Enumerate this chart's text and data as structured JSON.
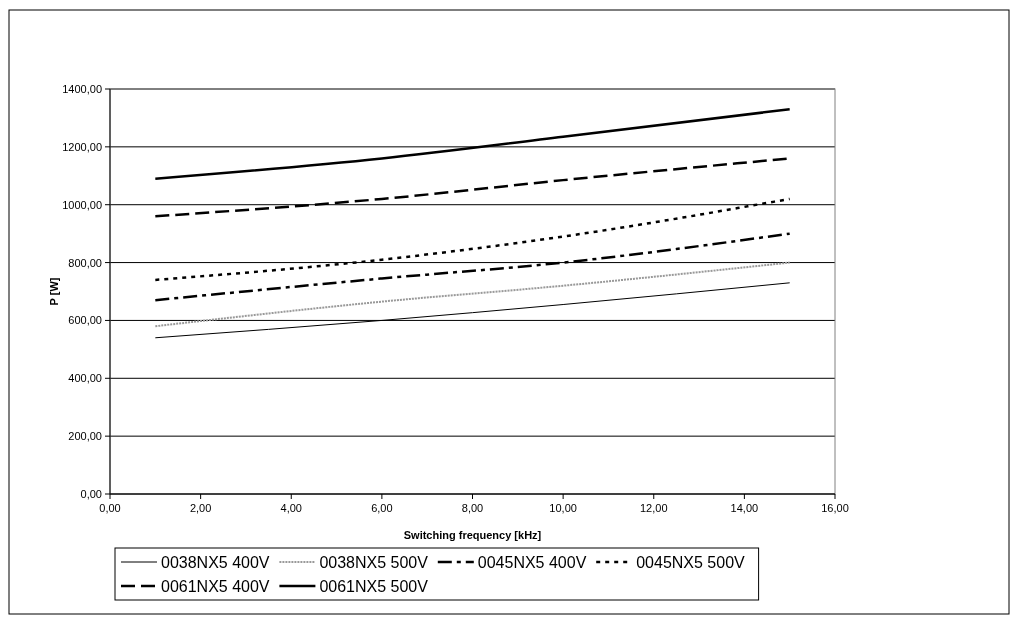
{
  "chart_data": {
    "type": "line",
    "xlabel": "Switching frequency [kHz]",
    "ylabel": "P [W]",
    "x": [
      1,
      6,
      10,
      15
    ],
    "series": [
      {
        "name": "0038NX5 400V",
        "color": "#000000",
        "line_style": "solid",
        "values": [
          540,
          600,
          655,
          730
        ]
      },
      {
        "name": "0038NX5 500V",
        "color": "#999999",
        "line_style": "dotted",
        "values": [
          580,
          665,
          720,
          800
        ]
      },
      {
        "name": "0045NX5 400V",
        "color": "#000000",
        "line_style": "dashdot",
        "values": [
          670,
          745,
          800,
          900
        ]
      },
      {
        "name": "0045NX5 500V",
        "color": "#000000",
        "line_style": "dotted",
        "values": [
          740,
          810,
          890,
          1020
        ]
      },
      {
        "name": "0061NX5 400V",
        "color": "#000000",
        "line_style": "dashed",
        "values": [
          960,
          1020,
          1085,
          1160
        ]
      },
      {
        "name": "0061NX5 500V",
        "color": "#000000",
        "line_style": "solid",
        "values": [
          1090,
          1160,
          1235,
          1330
        ]
      }
    ],
    "xlim": [
      0,
      16
    ],
    "xticks": [
      {
        "value": 0,
        "label": "0,00"
      },
      {
        "value": 2,
        "label": "2,00"
      },
      {
        "value": 4,
        "label": "4,00"
      },
      {
        "value": 6,
        "label": "6,00"
      },
      {
        "value": 8,
        "label": "8,00"
      },
      {
        "value": 10,
        "label": "10,00"
      },
      {
        "value": 12,
        "label": "12,00"
      },
      {
        "value": 14,
        "label": "14,00"
      },
      {
        "value": 16,
        "label": "16,00"
      }
    ],
    "ylim": [
      0,
      1400
    ],
    "yticks": [
      {
        "value": 0,
        "label": "0,00"
      },
      {
        "value": 200,
        "label": "200,00"
      },
      {
        "value": 400,
        "label": "400,00"
      },
      {
        "value": 600,
        "label": "600,00"
      },
      {
        "value": 800,
        "label": "800,00"
      },
      {
        "value": 1000,
        "label": "1000,00"
      },
      {
        "value": 1200,
        "label": "1200,00"
      },
      {
        "value": 1400,
        "label": "1400,00"
      }
    ],
    "grid": "y",
    "legend": "bottom",
    "marker": "none"
  }
}
